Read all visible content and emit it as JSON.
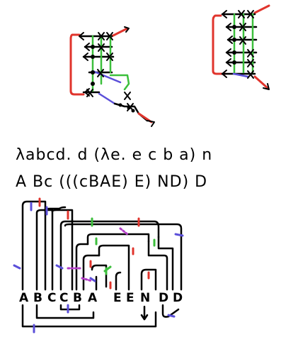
{
  "colors": {
    "ink": "#000000",
    "red": "#e0342c",
    "green": "#3cbf3c",
    "blue": "#5b4fd9",
    "magenta": "#b23cc8"
  },
  "expressions": {
    "lambda_term": "λabcd. d (λe. e c b a) n",
    "application": "A Bc (((cBAE) E) ND) D"
  },
  "term_letters": [
    "A",
    "B",
    "C",
    "C",
    "B",
    "A",
    "E",
    "E",
    "N",
    "D",
    "D"
  ]
}
